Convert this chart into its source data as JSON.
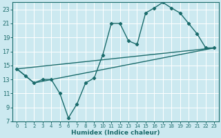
{
  "xlabel": "Humidex (Indice chaleur)",
  "bg_color": "#cce9f0",
  "grid_color": "#ffffff",
  "line_color": "#1a6b6b",
  "xlim": [
    -0.5,
    23.5
  ],
  "ylim": [
    7,
    24
  ],
  "xticks": [
    0,
    1,
    2,
    3,
    4,
    5,
    6,
    7,
    8,
    9,
    10,
    11,
    12,
    13,
    14,
    15,
    16,
    17,
    18,
    19,
    20,
    21,
    22,
    23
  ],
  "yticks": [
    7,
    9,
    11,
    13,
    15,
    17,
    19,
    21,
    23
  ],
  "series1_x": [
    0,
    1,
    2,
    3,
    4,
    5,
    6,
    7,
    8,
    9,
    10,
    11,
    12,
    13,
    14,
    15,
    16,
    17,
    18,
    19,
    20,
    21,
    22,
    23
  ],
  "series1_y": [
    14.5,
    13.5,
    12.5,
    13.0,
    13.0,
    11.0,
    7.5,
    9.5,
    12.5,
    13.2,
    16.5,
    21.0,
    21.0,
    18.5,
    18.0,
    22.5,
    23.2,
    24.0,
    23.2,
    22.5,
    21.0,
    19.5,
    17.5,
    17.5
  ],
  "series2_x": [
    0,
    23
  ],
  "series2_y": [
    14.5,
    17.5
  ],
  "series3_x": [
    0,
    2,
    23
  ],
  "series3_y": [
    14.5,
    12.5,
    17.5
  ]
}
